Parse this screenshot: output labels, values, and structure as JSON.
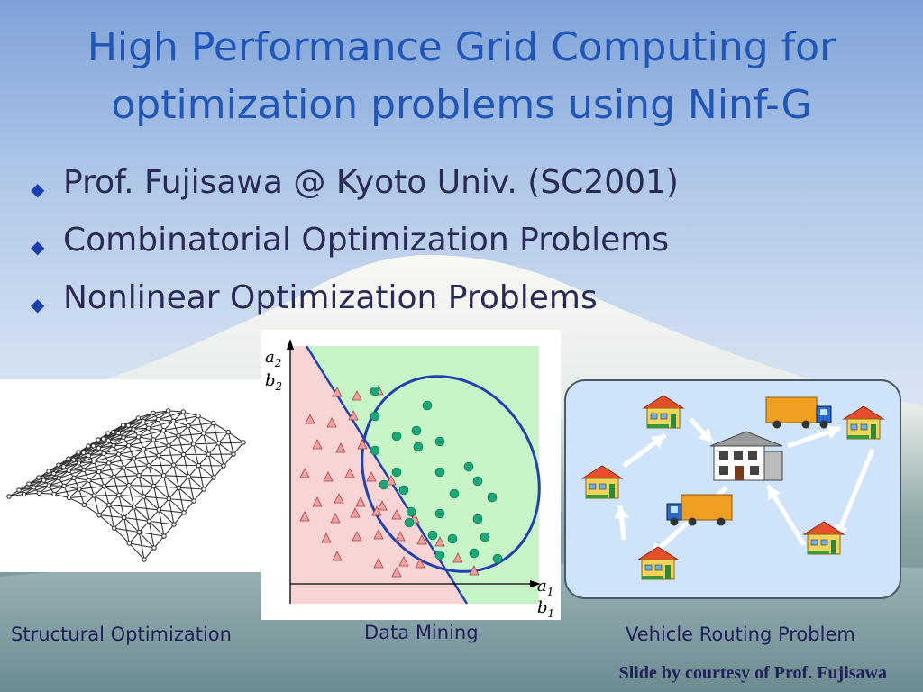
{
  "title": {
    "line1": "High Performance Grid Computing for",
    "line2": "optimization problems using Ninf-G"
  },
  "bullets": [
    "Prof. Fujisawa @ Kyoto Univ. (SC2001)",
    "Combinatorial Optimization Problems",
    "Nonlinear Optimization Problems"
  ],
  "figures": {
    "structural": {
      "caption": "Structural Optimization"
    },
    "data_mining": {
      "caption": "Data Mining",
      "axis_y_top": "a",
      "axis_y_top_sub": "2",
      "axis_y_bottom": "b",
      "axis_y_bottom_sub": "2",
      "axis_x_top": "a",
      "axis_x_top_sub": "1",
      "axis_x_bottom": "b",
      "axis_x_bottom_sub": "1"
    },
    "vehicle_routing": {
      "caption": "Vehicle Routing Problem"
    }
  },
  "credit": "Slide by courtesy of Prof. Fujisawa",
  "colors": {
    "title": "#1f56b8",
    "bullet_text": "#2a2a58",
    "class_a_fill": "#f0a0a0",
    "class_b_fill": "#1aa878",
    "separator": "#2340b0"
  }
}
